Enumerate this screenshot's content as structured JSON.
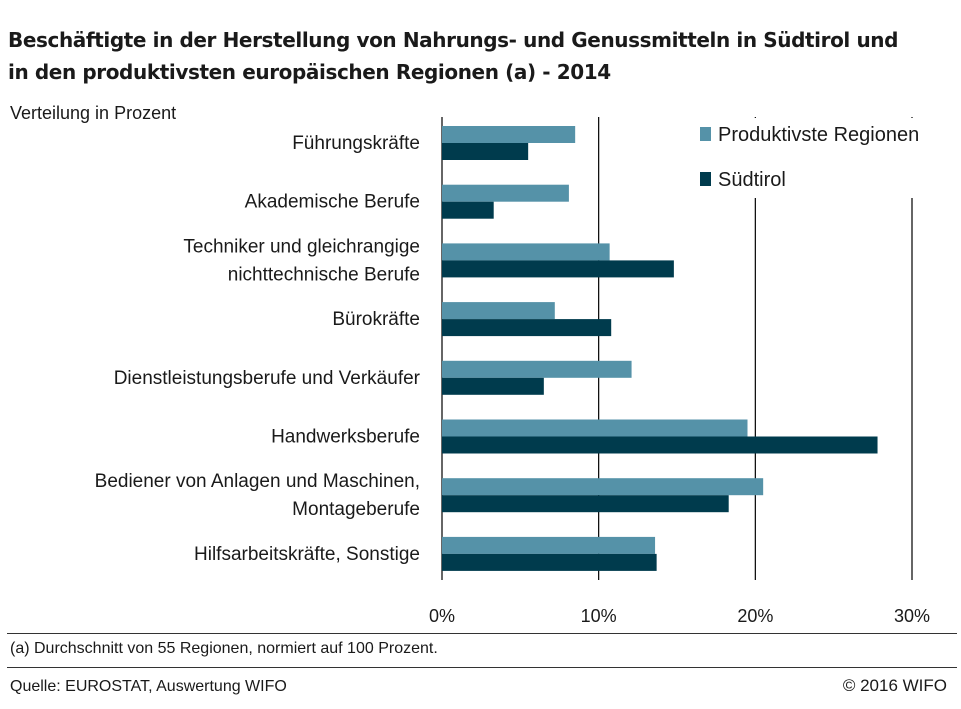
{
  "header": {
    "title_line1": "Beschäftigte in der Herstellung von Nahrungs- und Genussmitteln in Südtirol und",
    "title_line2": "in den produktivsten europäischen Regionen (a) - 2014",
    "subtitle": "Verteilung in Prozent"
  },
  "chart_data": {
    "type": "bar",
    "orientation": "horizontal",
    "title": "Beschäftigte in der Herstellung von Nahrungs- und Genussmitteln in Südtirol und in den produktivsten europäischen Regionen (a) - 2014",
    "ylabel": "Verteilung in Prozent",
    "xlabel": "",
    "categories": [
      [
        "Führungskräfte"
      ],
      [
        "Akademische Berufe"
      ],
      [
        "Techniker und gleichrangige",
        "nichttechnische Berufe"
      ],
      [
        "Bürokräfte"
      ],
      [
        "Dienstleistungsberufe und Verkäufer"
      ],
      [
        "Handwerksberufe"
      ],
      [
        "Bediener von Anlagen und Maschinen,",
        "Montageberufe"
      ],
      [
        "Hilfsarbeitskräfte, Sonstige"
      ]
    ],
    "series": [
      {
        "name": "Produktivste Regionen",
        "color": "#5592a8",
        "values": [
          8.5,
          8.1,
          10.7,
          7.2,
          12.1,
          19.5,
          20.5,
          13.6
        ]
      },
      {
        "name": "Südtirol",
        "color": "#003b4d",
        "values": [
          5.5,
          3.3,
          14.8,
          10.8,
          6.5,
          27.8,
          18.3,
          13.7
        ]
      }
    ],
    "xlim": [
      0,
      30
    ],
    "xticks": [
      "0%",
      "10%",
      "20%",
      "30%"
    ],
    "grid": true,
    "legend": "top-right"
  },
  "footer": {
    "footnote": "(a) Durchschnitt von 55 Regionen, normiert auf 100 Prozent.",
    "source": "Quelle: EUROSTAT, Auswertung WIFO",
    "copyright": "© 2016 WIFO"
  }
}
